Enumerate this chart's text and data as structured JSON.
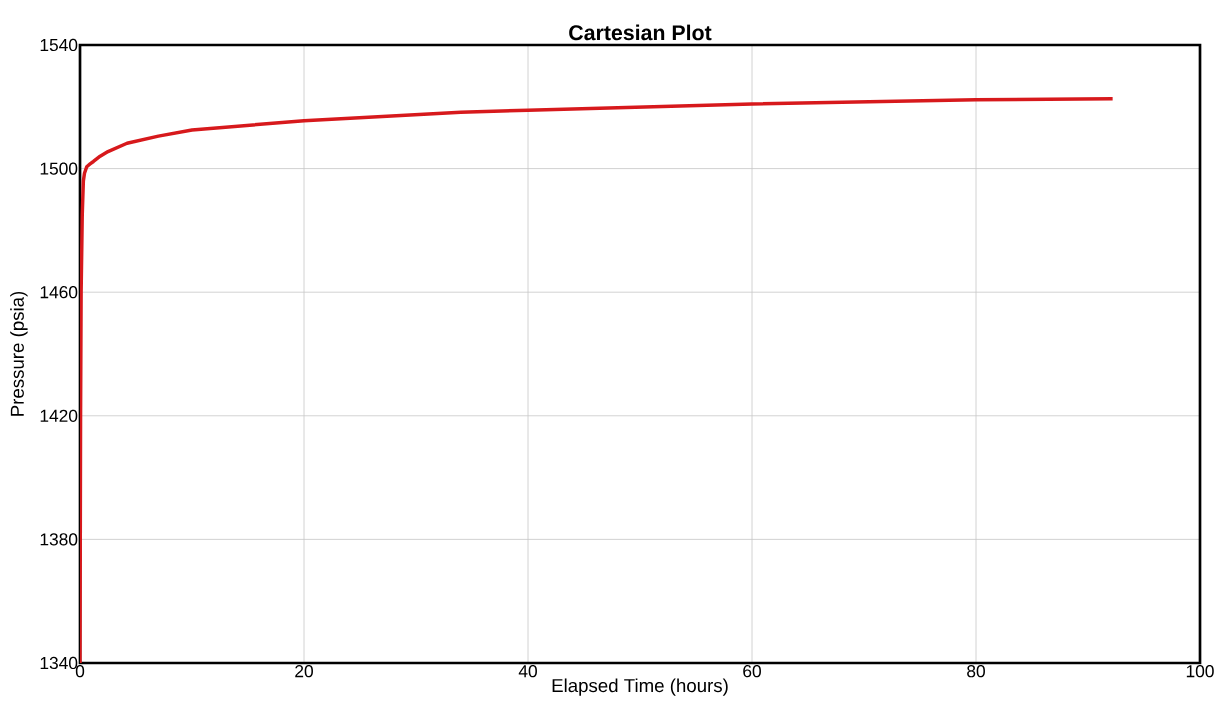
{
  "chart_data": {
    "type": "line",
    "title": "**Cartesian Plot**",
    "xlabel": "Elapsed Time (hours)",
    "ylabel": "Pressure (psia)",
    "x": [
      0,
      0.05,
      0.1,
      0.2,
      0.3,
      0.4,
      0.6,
      0.9,
      1.2,
      1.8,
      2.5,
      4.2,
      7,
      10,
      20,
      34,
      40,
      60,
      80,
      92.2
    ],
    "series": [
      {
        "color": "#d7191c",
        "values": [
          1340,
          1420,
          1460,
          1485,
          1496,
          1498.5,
          1500.6,
          1501.5,
          1502.3,
          1504,
          1505.5,
          1508.2,
          1510.5,
          1512.5,
          1515.5,
          1518.2,
          1518.9,
          1520.9,
          1522.3,
          1522.6
        ]
      }
    ],
    "xlim": [
      0,
      100
    ],
    "ylim": [
      1340,
      1540
    ],
    "xticks": [
      0,
      20,
      40,
      60,
      80,
      100
    ],
    "yticks": [
      1340,
      1380,
      1420,
      1460,
      1500,
      1540
    ],
    "grid": true,
    "marker": "none",
    "line_style": "solid"
  }
}
